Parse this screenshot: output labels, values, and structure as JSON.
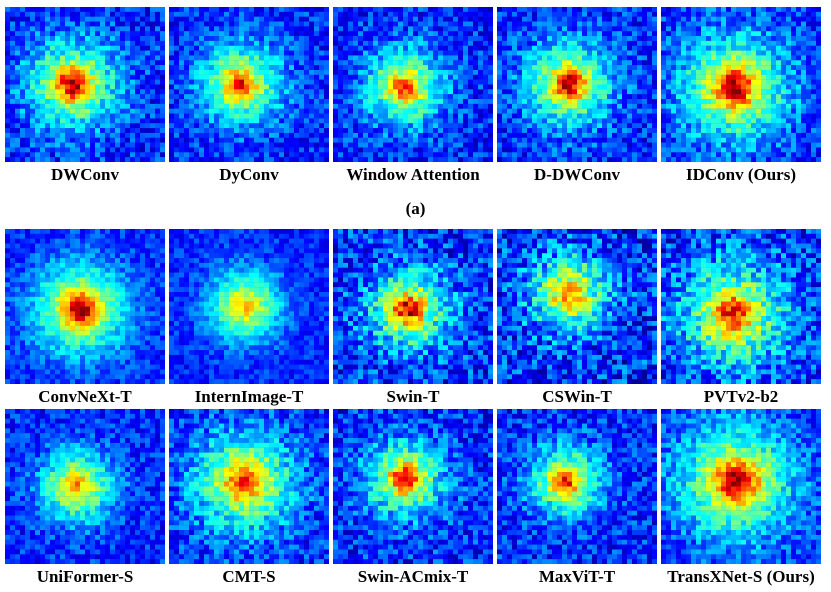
{
  "figure": {
    "subfigure_a_caption": "(a)",
    "row_a": [
      {
        "label": "DWConv",
        "center": [
          0.42,
          0.5
        ],
        "spread": 0.4,
        "peak": 0.95,
        "noise": 0.22
      },
      {
        "label": "DyConv",
        "center": [
          0.45,
          0.5
        ],
        "spread": 0.36,
        "peak": 0.86,
        "noise": 0.2
      },
      {
        "label": "Window Attention",
        "center": [
          0.45,
          0.52
        ],
        "spread": 0.34,
        "peak": 0.84,
        "noise": 0.22
      },
      {
        "label": "D-DWConv",
        "center": [
          0.45,
          0.5
        ],
        "spread": 0.38,
        "peak": 0.95,
        "noise": 0.22
      },
      {
        "label": "IDConv (Ours)",
        "center": [
          0.46,
          0.52
        ],
        "spread": 0.48,
        "peak": 0.97,
        "noise": 0.22
      }
    ],
    "row_b1": [
      {
        "label": "ConvNeXt-T",
        "center": [
          0.47,
          0.52
        ],
        "spread": 0.42,
        "peak": 0.98,
        "noise": 0.15
      },
      {
        "label": "InternImage-T",
        "center": [
          0.47,
          0.5
        ],
        "spread": 0.32,
        "peak": 0.68,
        "noise": 0.14
      },
      {
        "label": "Swin-T",
        "center": [
          0.47,
          0.52
        ],
        "spread": 0.36,
        "peak": 0.95,
        "noise": 0.28
      },
      {
        "label": "CSWin-T",
        "center": [
          0.45,
          0.42
        ],
        "spread": 0.34,
        "peak": 0.78,
        "noise": 0.3
      },
      {
        "label": "PVTv2-b2",
        "center": [
          0.45,
          0.55
        ],
        "spread": 0.46,
        "peak": 0.9,
        "noise": 0.28
      }
    ],
    "row_b2": [
      {
        "label": "UniFormer-S",
        "center": [
          0.45,
          0.5
        ],
        "spread": 0.32,
        "peak": 0.72,
        "noise": 0.18
      },
      {
        "label": "CMT-S",
        "center": [
          0.47,
          0.47
        ],
        "spread": 0.44,
        "peak": 0.88,
        "noise": 0.22
      },
      {
        "label": "Swin-ACmix-T",
        "center": [
          0.45,
          0.45
        ],
        "spread": 0.34,
        "peak": 0.92,
        "noise": 0.24
      },
      {
        "label": "MaxViT-T",
        "center": [
          0.43,
          0.47
        ],
        "spread": 0.32,
        "peak": 0.85,
        "noise": 0.22
      },
      {
        "label": "TransXNet-S (Ours)",
        "center": [
          0.47,
          0.47
        ],
        "spread": 0.52,
        "peak": 0.98,
        "noise": 0.2
      }
    ]
  }
}
